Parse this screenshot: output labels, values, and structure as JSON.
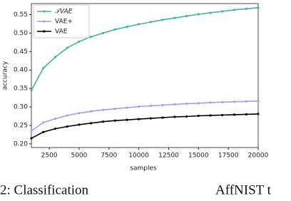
{
  "chart_data": {
    "type": "line",
    "xlabel": "samples",
    "ylabel": "accuracy",
    "x": [
      1000,
      2000,
      3000,
      4000,
      5000,
      6000,
      7000,
      8000,
      9000,
      10000,
      11000,
      12000,
      13000,
      14000,
      15000,
      16000,
      17000,
      18000,
      19000,
      20000
    ],
    "series": [
      {
        "name": "𝒯VAE",
        "color": "#45b39d",
        "values": [
          0.345,
          0.405,
          0.435,
          0.46,
          0.477,
          0.49,
          0.5,
          0.51,
          0.517,
          0.524,
          0.53,
          0.536,
          0.541,
          0.546,
          0.551,
          0.555,
          0.559,
          0.563,
          0.566,
          0.569
        ]
      },
      {
        "name": "VAE+",
        "color": "#a89cf0",
        "values": [
          0.235,
          0.258,
          0.268,
          0.277,
          0.283,
          0.288,
          0.292,
          0.295,
          0.298,
          0.301,
          0.303,
          0.305,
          0.307,
          0.309,
          0.31,
          0.312,
          0.313,
          0.314,
          0.315,
          0.316
        ]
      },
      {
        "name": "VAE",
        "color": "#000000",
        "values": [
          0.215,
          0.232,
          0.241,
          0.247,
          0.252,
          0.256,
          0.26,
          0.263,
          0.265,
          0.267,
          0.269,
          0.271,
          0.273,
          0.274,
          0.276,
          0.277,
          0.278,
          0.279,
          0.28,
          0.281
        ]
      }
    ],
    "xlim": [
      1000,
      20000
    ],
    "ylim": [
      0.19,
      0.58
    ],
    "xticks": [
      2500,
      5000,
      7500,
      10000,
      12500,
      15000,
      17500,
      20000
    ],
    "yticks": [
      {
        "value": 0.2,
        "label": "0.20"
      },
      0.25,
      {
        "value": 0.3,
        "label": "0.30"
      },
      0.35,
      {
        "value": 0.4,
        "label": "0.40"
      },
      0.45,
      {
        "value": 0.5,
        "label": "0.50"
      },
      0.55
    ],
    "grid": false,
    "legend": "upper left"
  },
  "caption": [
    "2: Classification",
    "AffNIST t"
  ]
}
